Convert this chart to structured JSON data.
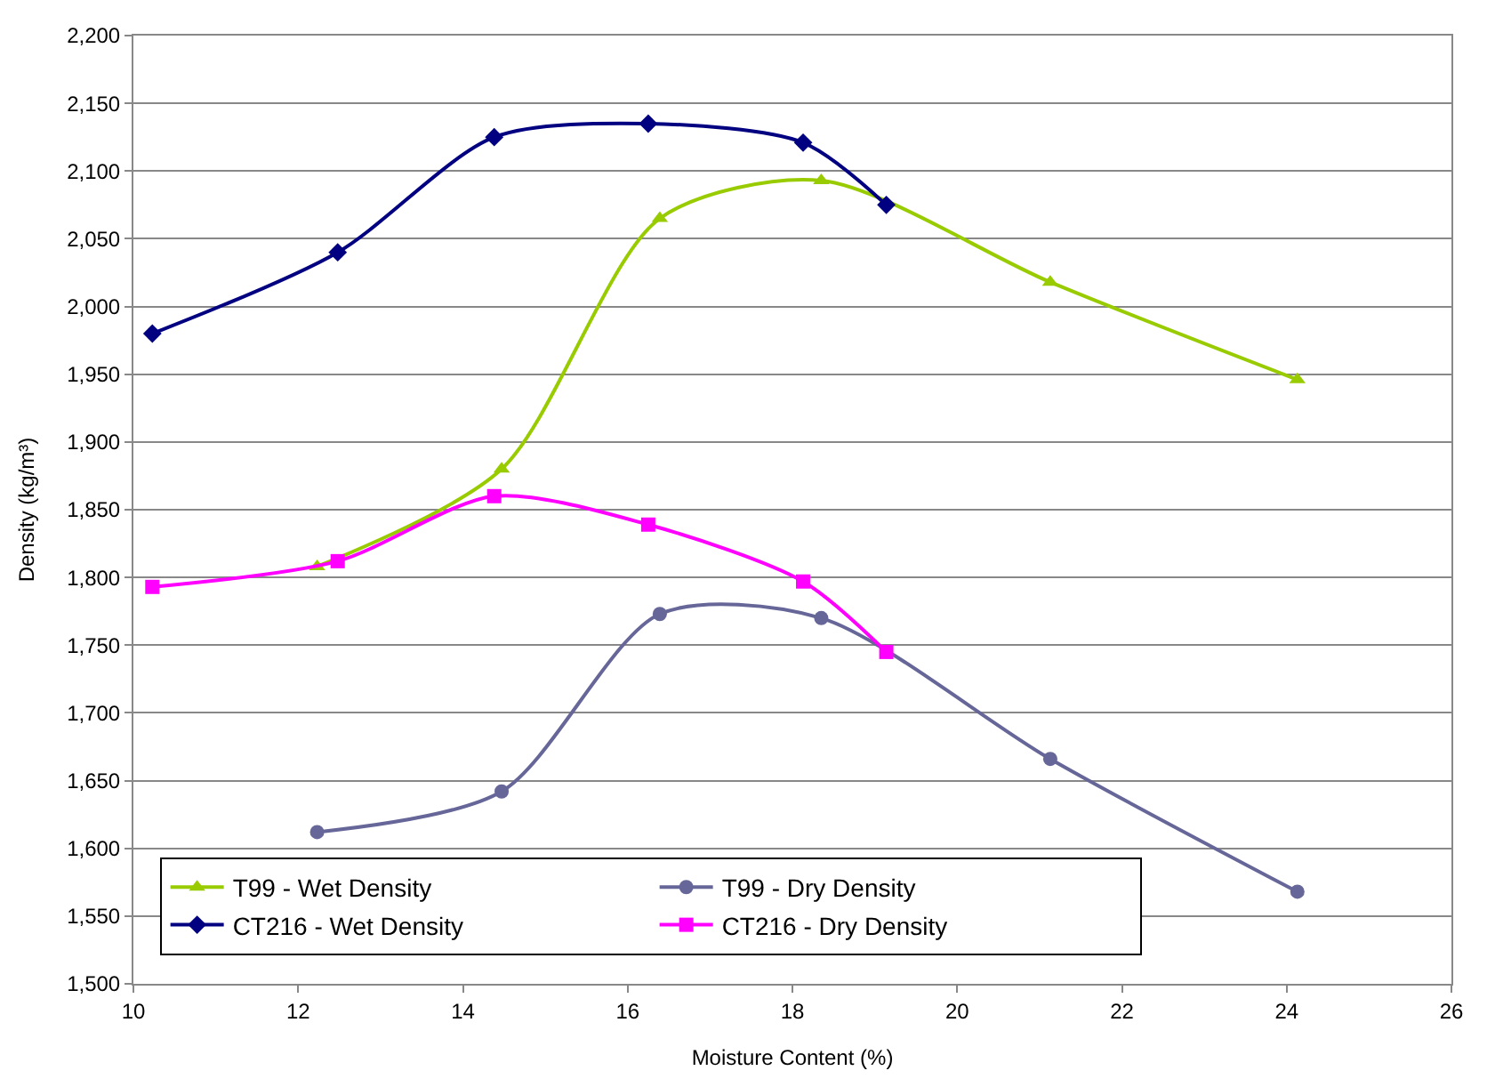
{
  "chart_data": {
    "type": "line",
    "xlabel": "Moisture Content (%)",
    "ylabel": "Density (kg/m³)",
    "xlim": [
      10,
      26
    ],
    "xticks": [
      10,
      12,
      14,
      16,
      18,
      20,
      22,
      24,
      26
    ],
    "ylim": [
      1500,
      2200
    ],
    "yticks": [
      {
        "value": 1500,
        "label": "1,500"
      },
      {
        "value": 1550,
        "label": "1,550"
      },
      {
        "value": 1600,
        "label": "1,600"
      },
      {
        "value": 1650,
        "label": "1,650"
      },
      {
        "value": 1700,
        "label": "1,700"
      },
      {
        "value": 1750,
        "label": "1,750"
      },
      {
        "value": 1800,
        "label": "1,800"
      },
      {
        "value": 1850,
        "label": "1,850"
      },
      {
        "value": 1900,
        "label": "1,900"
      },
      {
        "value": 1950,
        "label": "1,950"
      },
      {
        "value": 2000,
        "label": "2,000"
      },
      {
        "value": 2050,
        "label": "2,050"
      },
      {
        "value": 2100,
        "label": "2,100"
      },
      {
        "value": 2150,
        "label": "2,150"
      },
      {
        "value": 2200,
        "label": "2,200"
      }
    ],
    "grid": "y",
    "legend": "bottom left",
    "line_style": "solid",
    "series": [
      {
        "name": "T99 - Wet Density",
        "color": "#99cc00",
        "marker": "triangle",
        "x": [
          12.23,
          14.47,
          16.39,
          18.35,
          21.13,
          24.13
        ],
        "values": [
          1808,
          1880,
          2065,
          2093,
          2018,
          1946
        ]
      },
      {
        "name": "T99 - Dry Density",
        "color": "#666699",
        "marker": "circle",
        "x": [
          12.23,
          14.47,
          16.39,
          18.35,
          21.13,
          24.13
        ],
        "values": [
          1612,
          1642,
          1773,
          1770,
          1666,
          1568
        ]
      },
      {
        "name": "CT216 - Wet Density",
        "color": "#000080",
        "marker": "diamond",
        "x": [
          10.23,
          12.48,
          14.38,
          16.25,
          18.13,
          19.14
        ],
        "values": [
          1980,
          2040,
          2125,
          2135,
          2121,
          2075
        ]
      },
      {
        "name": "CT216 - Dry Density",
        "color": "#ff00ff",
        "marker": "square",
        "x": [
          10.23,
          12.48,
          14.38,
          16.25,
          18.13,
          19.14
        ],
        "values": [
          1793,
          1812,
          1860,
          1839,
          1797,
          1745
        ]
      }
    ]
  }
}
